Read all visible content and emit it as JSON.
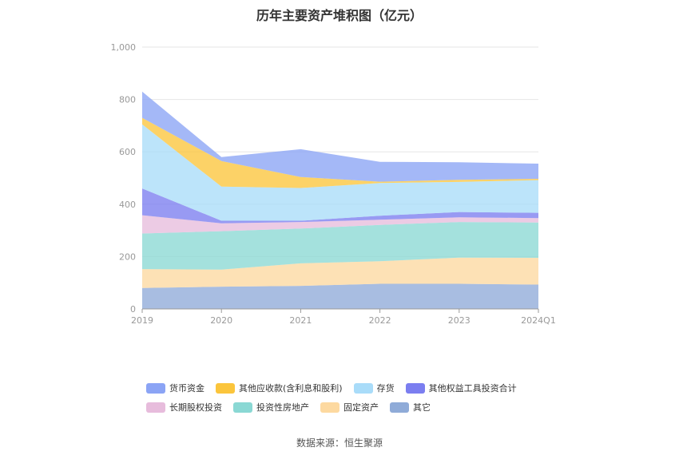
{
  "chart_data": {
    "type": "area",
    "stacked": true,
    "title": "历年主要资产堆积图（亿元）",
    "categories": [
      "2019",
      "2020",
      "2021",
      "2022",
      "2023",
      "2024Q1"
    ],
    "ylim": [
      0,
      1000
    ],
    "yticks": [
      "0",
      "200",
      "400",
      "600",
      "800",
      "1,000"
    ],
    "grid": true,
    "legend_position": "bottom",
    "series": [
      {
        "name": "其它",
        "color": "#8fabd8",
        "values": [
          80,
          85,
          88,
          96,
          96,
          93
        ]
      },
      {
        "name": "固定资产",
        "color": "#fdd9a0",
        "values": [
          72,
          65,
          86,
          86,
          100,
          102
        ]
      },
      {
        "name": "投资性房地产",
        "color": "#8ad8d4",
        "values": [
          136,
          147,
          133,
          139,
          136,
          135
        ]
      },
      {
        "name": "长期股权投资",
        "color": "#e7bcdc",
        "values": [
          70,
          30,
          25,
          20,
          18,
          17
        ]
      },
      {
        "name": "其他权益工具投资合计",
        "color": "#7b7ef0",
        "values": [
          102,
          10,
          5,
          15,
          20,
          20
        ]
      },
      {
        "name": "存货",
        "color": "#a9dcf9",
        "values": [
          245,
          130,
          125,
          125,
          115,
          125
        ]
      },
      {
        "name": "其他应收款(含利息和股利)",
        "color": "#fbc53c",
        "values": [
          25,
          98,
          42,
          5,
          8,
          5
        ]
      },
      {
        "name": "货币资金",
        "color": "#8ba4f5",
        "values": [
          100,
          15,
          106,
          76,
          67,
          58
        ]
      }
    ]
  },
  "legend_rows": [
    [
      "货币资金",
      "其他应收款(含利息和股利)",
      "存货",
      "其他权益工具投资合计"
    ],
    [
      "长期股权投资",
      "投资性房地产",
      "固定资产",
      "其它"
    ]
  ],
  "source_text": "数据来源：恒生聚源"
}
